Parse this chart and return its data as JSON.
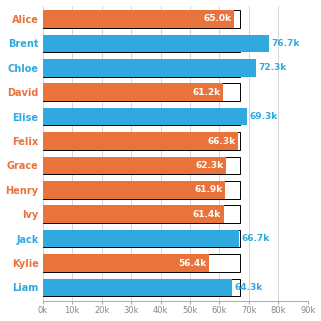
{
  "names": [
    "Alice",
    "Brent",
    "Chloe",
    "David",
    "Elise",
    "Felix",
    "Grace",
    "Henry",
    "Ivy",
    "Jack",
    "Kylie",
    "Liam"
  ],
  "values": [
    65000,
    76700,
    72300,
    61200,
    69300,
    66300,
    62300,
    61900,
    61400,
    66700,
    56400,
    64300
  ],
  "colors": [
    "#E8743B",
    "#30A9DE",
    "#30A9DE",
    "#E8743B",
    "#30A9DE",
    "#E8743B",
    "#E8743B",
    "#E8743B",
    "#E8743B",
    "#30A9DE",
    "#E8743B",
    "#30A9DE"
  ],
  "labels": [
    "65.0k",
    "76.7k",
    "72.3k",
    "61.2k",
    "69.3k",
    "66.3k",
    "62.3k",
    "61.9k",
    "61.4k",
    "66.7k",
    "56.4k",
    "64.3k"
  ],
  "target": 67000,
  "orange_color": "#E8743B",
  "blue_color": "#30A9DE",
  "bg_bar_color": "#ffffff",
  "bg_bar_edge": "#000000",
  "xlim": [
    0,
    90000
  ],
  "xticks": [
    0,
    10000,
    20000,
    30000,
    40000,
    50000,
    60000,
    70000,
    80000,
    90000
  ],
  "xtick_labels": [
    "0k",
    "10k",
    "20k",
    "30k",
    "40k",
    "50k",
    "60k",
    "70k",
    "80k",
    "90k"
  ],
  "fig_bg": "#ffffff",
  "grid_color": "#d0d0d0",
  "label_fontsize": 6.5,
  "name_fontsize": 7.0,
  "xtick_fontsize": 6.0
}
